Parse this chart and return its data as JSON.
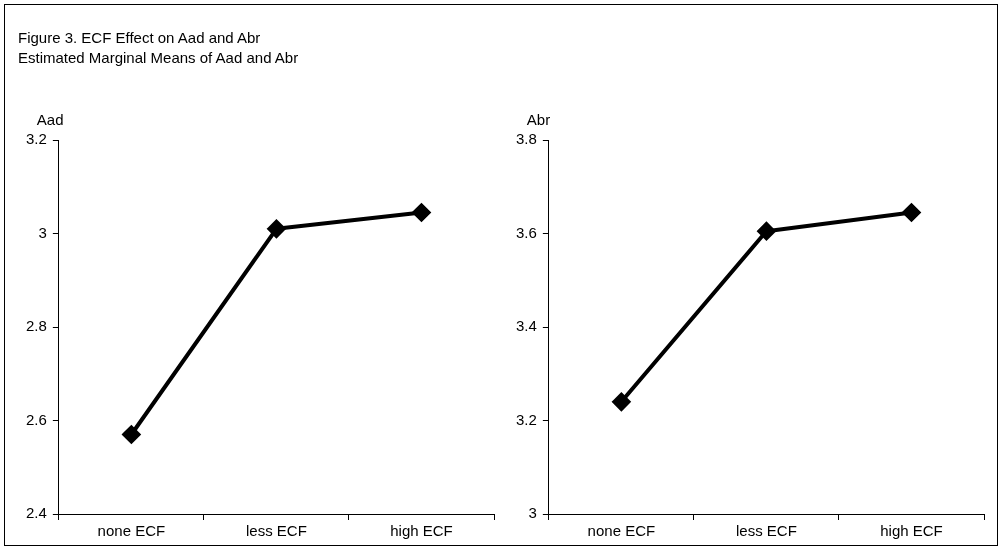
{
  "chart_data": [
    {
      "type": "line",
      "title": "Figure 3. ECF Effect on Aad and Abr",
      "subtitle": "Estimated Marginal Means of Aad and Abr",
      "ylabel": "Aad",
      "categories": [
        "none ECF",
        "less ECF",
        "high ECF"
      ],
      "series": [
        {
          "color": "#000000",
          "values": [
            2.57,
            3.01,
            3.045
          ]
        }
      ],
      "ylim": [
        2.4,
        3.2
      ],
      "yticks": [
        2.4,
        2.6,
        2.8,
        3,
        3.2
      ],
      "grid": false,
      "legend": false,
      "marker": "diamond",
      "line_style": "solid"
    },
    {
      "type": "line",
      "ylabel": "Abr",
      "categories": [
        "none ECF",
        "less ECF",
        "high ECF"
      ],
      "series": [
        {
          "color": "#000000",
          "values": [
            3.24,
            3.605,
            3.645
          ]
        }
      ],
      "ylim": [
        3,
        3.8
      ],
      "yticks": [
        3,
        3.2,
        3.4,
        3.6,
        3.8
      ],
      "grid": false,
      "legend": false,
      "marker": "diamond",
      "line_style": "solid"
    }
  ]
}
